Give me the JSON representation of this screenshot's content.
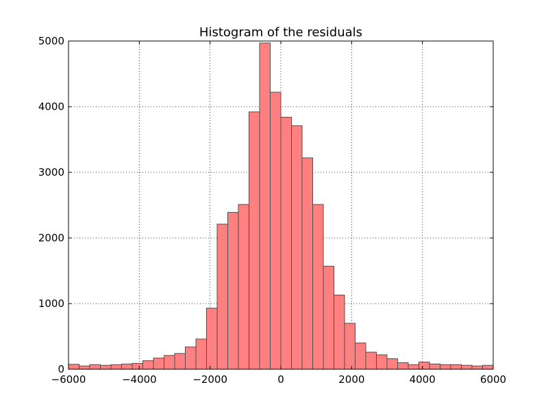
{
  "chart_data": {
    "type": "bar",
    "title": "Histogram of the residuals",
    "xlabel": "",
    "ylabel": "",
    "xlim": [
      -6000,
      6000
    ],
    "ylim": [
      0,
      5000
    ],
    "x_ticks": [
      -6000,
      -4000,
      -2000,
      0,
      2000,
      4000,
      6000
    ],
    "x_tick_labels": [
      "−6000",
      "−4000",
      "−2000",
      "0",
      "2000",
      "4000",
      "6000"
    ],
    "y_ticks": [
      0,
      1000,
      2000,
      3000,
      4000,
      5000
    ],
    "y_tick_labels": [
      "0",
      "1000",
      "2000",
      "3000",
      "4000",
      "5000"
    ],
    "grid": true,
    "bar_color": "#ff8080",
    "edge_color": "#4d4d4d",
    "bin_edges": [
      -6000,
      -5700,
      -5400,
      -5100,
      -4800,
      -4500,
      -4200,
      -3900,
      -3600,
      -3300,
      -3000,
      -2700,
      -2400,
      -2100,
      -1800,
      -1500,
      -1200,
      -900,
      -600,
      -300,
      0,
      300,
      600,
      900,
      1200,
      1500,
      1800,
      2100,
      2400,
      2700,
      3000,
      3300,
      3600,
      3900,
      4200,
      4500,
      4800,
      5100,
      5400,
      5700,
      6000
    ],
    "values": [
      75,
      50,
      70,
      60,
      70,
      80,
      90,
      130,
      170,
      210,
      240,
      340,
      460,
      930,
      2210,
      2390,
      2510,
      3920,
      4970,
      4220,
      3840,
      3710,
      3220,
      2510,
      1570,
      1130,
      700,
      400,
      260,
      220,
      160,
      100,
      70,
      110,
      80,
      70,
      70,
      60,
      50,
      60
    ]
  }
}
